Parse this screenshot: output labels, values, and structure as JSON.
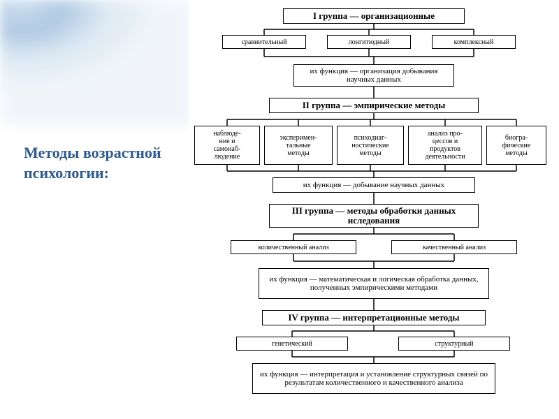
{
  "title": {
    "text": "Методы возрастной психологии:",
    "color": "#2f5a8f",
    "fontsize": 22
  },
  "diagram": {
    "bg": "#ffffff",
    "border_color": "#000000",
    "border_width": 1.5,
    "font": "Times New Roman",
    "header_fontsize": 13,
    "item_fontsize": 10,
    "func_fontsize": 11,
    "groups": [
      {
        "header": "I группа — организационные",
        "items": [
          "сравнительный",
          "лонгитюдный",
          "комплексный"
        ],
        "func": "их функция — организация добывания научных данных"
      },
      {
        "header": "II группа — эмпирические методы",
        "items": [
          "наблюде-\nние и\nсамонаб-\nлюдение",
          "эксперимен-\nтальные\nметоды",
          "психодиаг-\nностические\nметоды",
          "анализ про-\nцессов и\nпродуктов\nдеятельности",
          "биогра-\nфические\nметоды"
        ],
        "func": "их функция — добывание научных данных"
      },
      {
        "header": "III группа — методы обработки данных иследования",
        "items": [
          "количественный анализ",
          "качественный анализ"
        ],
        "func": "их функция — математическая и логическая обработка данных, полученных эмпирическими методами"
      },
      {
        "header": "IV группа — интерпретационные методы",
        "items": [
          "генетический",
          "структурный"
        ],
        "func": "их функция — интерпретация и установление структурных связей по результатам количественного и качественного анализа"
      }
    ]
  },
  "layout": {
    "g1": {
      "hy": 12,
      "hh": 22,
      "iy": 50,
      "ih": 20,
      "fy": 92,
      "fh": 32,
      "hc": 265,
      "hw": 260,
      "fw": 230,
      "ix": [
        48,
        198,
        348
      ],
      "iw": [
        120,
        120,
        120
      ]
    },
    "g2": {
      "hy": 140,
      "hh": 22,
      "iy": 180,
      "ih": 56,
      "fy": 254,
      "fh": 22,
      "hc": 265,
      "hw": 300,
      "fw": 290,
      "ix": [
        8,
        108,
        212,
        314,
        426
      ],
      "iw": [
        94,
        98,
        96,
        106,
        86
      ]
    },
    "g3": {
      "hy": 292,
      "hh": 34,
      "iy": 344,
      "ih": 20,
      "fy": 384,
      "fh": 44,
      "hc": 265,
      "hw": 300,
      "fw": 330,
      "ix": [
        60,
        290
      ],
      "iw": [
        180,
        180
      ]
    },
    "g4": {
      "hy": 444,
      "hh": 22,
      "iy": 482,
      "ih": 20,
      "fy": 520,
      "fh": 44,
      "hc": 265,
      "hw": 320,
      "fw": 348,
      "ix": [
        68,
        300
      ],
      "iw": [
        160,
        160
      ]
    }
  }
}
